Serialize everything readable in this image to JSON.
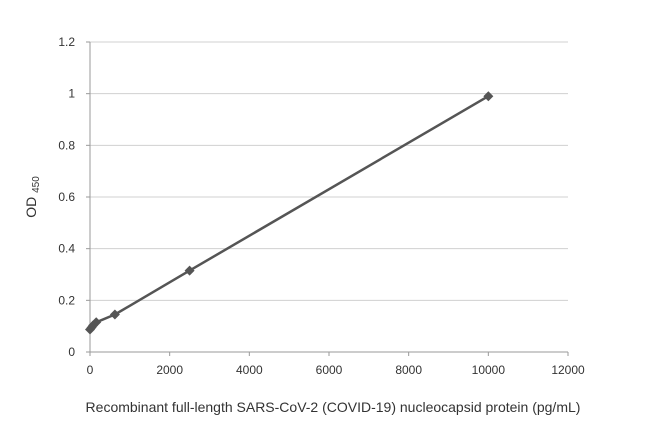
{
  "chart_data": {
    "type": "line",
    "xlabel": "Recombinant full-length SARS-CoV-2 (COVID-19) nucleocapsid protein (pg/mL)",
    "ylabel_main": "OD",
    "ylabel_sub": "450",
    "xlim": [
      0,
      12000
    ],
    "ylim": [
      0,
      1.2
    ],
    "x_ticks": [
      "0",
      "2000",
      "4000",
      "6000",
      "8000",
      "10000",
      "12000"
    ],
    "y_ticks": [
      "0",
      "0.2",
      "0.4",
      "0.6",
      "0.8",
      "1",
      "1.2"
    ],
    "grid": "horizontal",
    "legend": "none",
    "series": [
      {
        "x": [
          0,
          39,
          78,
          156,
          625,
          2500,
          10000
        ],
        "y": [
          0.087,
          0.095,
          0.103,
          0.115,
          0.145,
          0.315,
          0.99
        ]
      }
    ],
    "colors": {
      "line": "#555555",
      "marker": "#555555",
      "grid": "#d0d0d0",
      "axis": "#9a9a9a"
    }
  }
}
